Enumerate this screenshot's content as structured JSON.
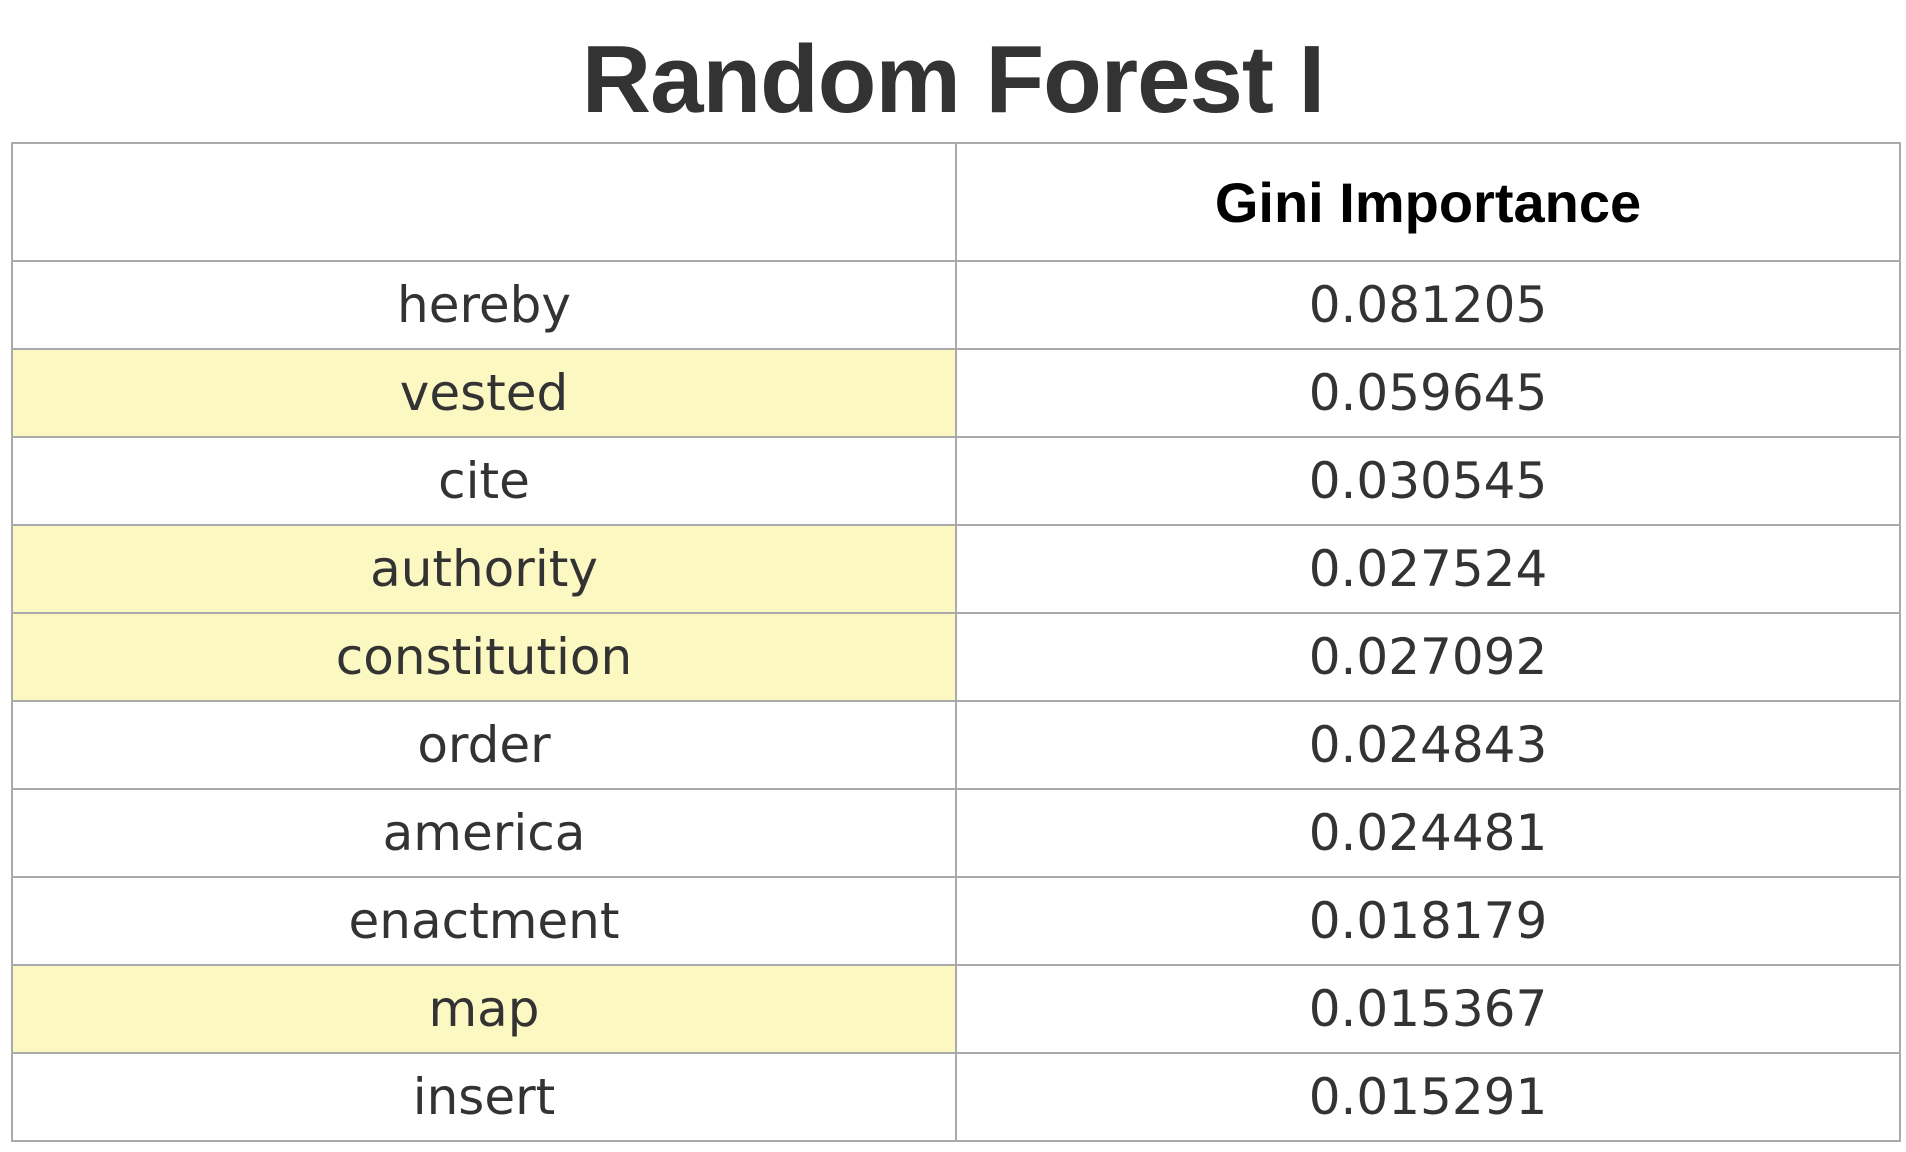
{
  "chart_data": {
    "type": "table",
    "title": "Random Forest I",
    "columns": [
      "",
      "Gini Importance"
    ],
    "highlight_color": "#fcf8c2",
    "rows": [
      {
        "feature": "hereby",
        "gini": "0.081205",
        "highlighted": false
      },
      {
        "feature": "vested",
        "gini": "0.059645",
        "highlighted": true
      },
      {
        "feature": "cite",
        "gini": "0.030545",
        "highlighted": false
      },
      {
        "feature": "authority",
        "gini": "0.027524",
        "highlighted": true
      },
      {
        "feature": "constitution",
        "gini": "0.027092",
        "highlighted": true
      },
      {
        "feature": "order",
        "gini": "0.024843",
        "highlighted": false
      },
      {
        "feature": "america",
        "gini": "0.024481",
        "highlighted": false
      },
      {
        "feature": "enactment",
        "gini": "0.018179",
        "highlighted": false
      },
      {
        "feature": "map",
        "gini": "0.015367",
        "highlighted": true
      },
      {
        "feature": "insert",
        "gini": "0.015291",
        "highlighted": false
      }
    ]
  }
}
